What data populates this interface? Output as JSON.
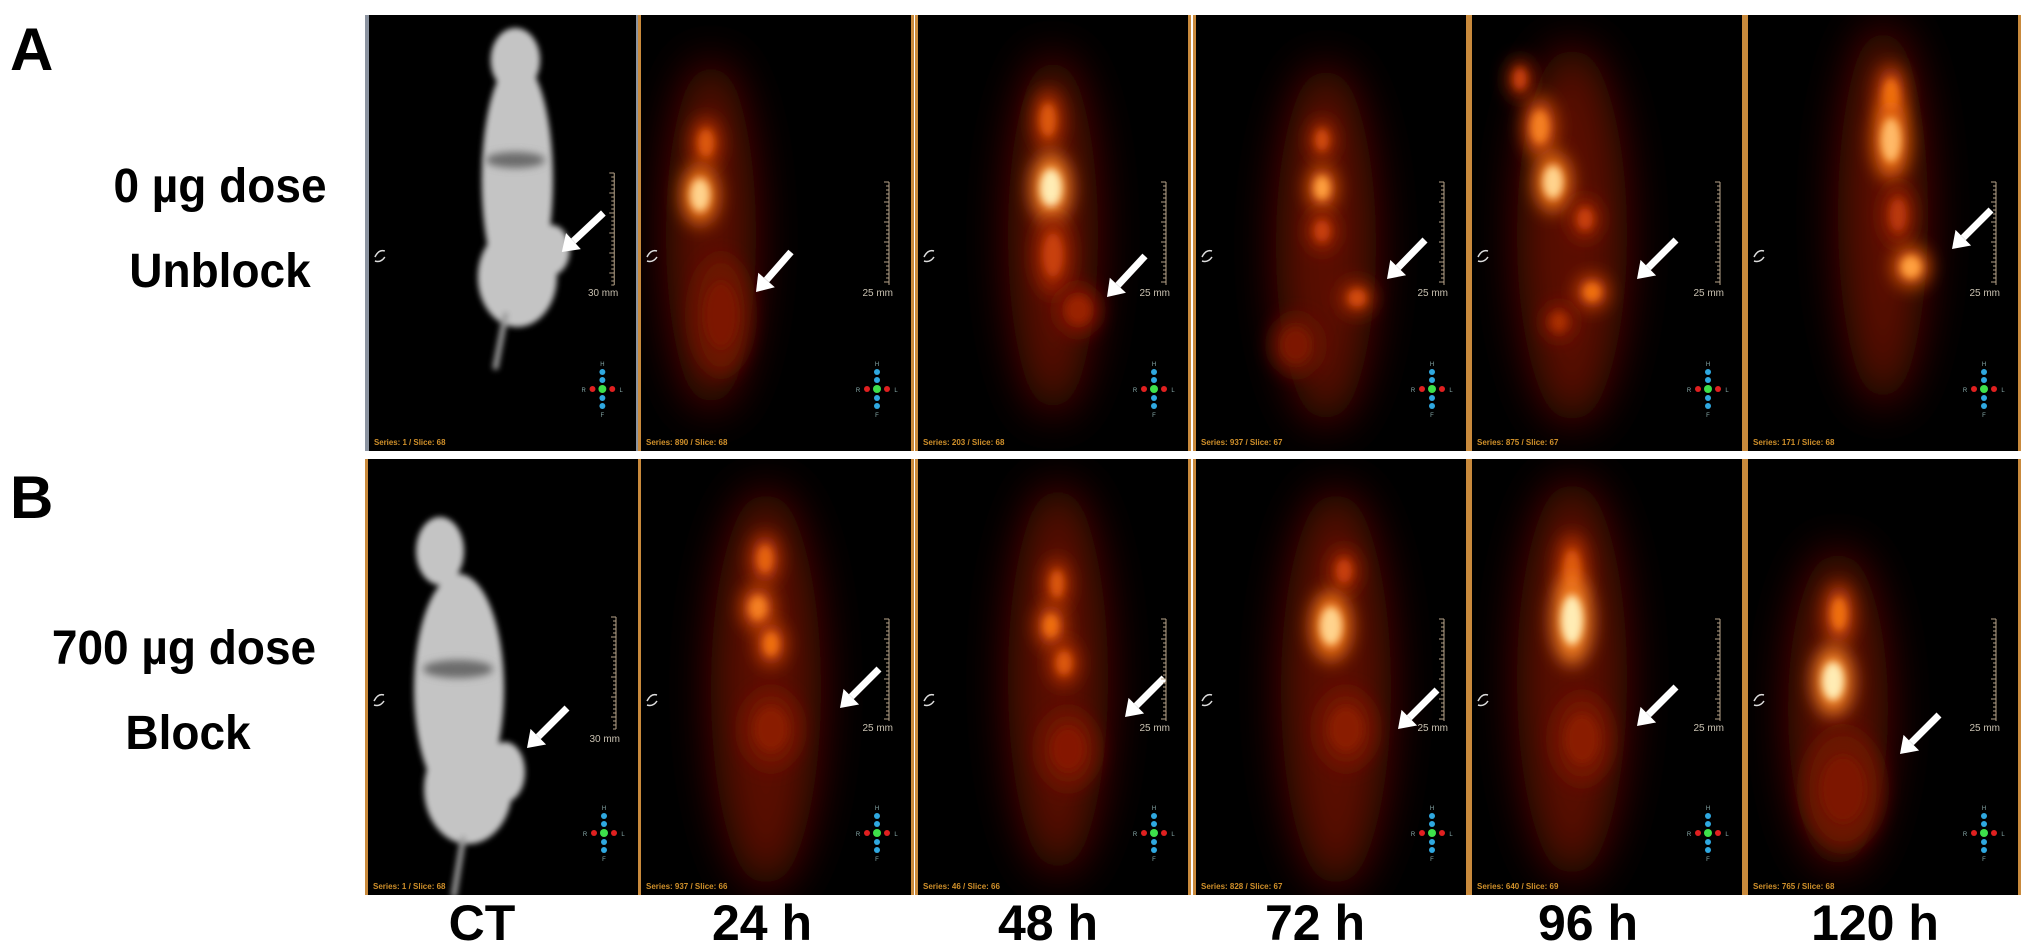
{
  "rows": [
    {
      "letter": "A",
      "label_line1": "0 µg dose",
      "label_line2": "Unblock",
      "images": [
        {
          "modality": "CT",
          "series": "Series: 1 / Slice: 68",
          "scale": "30 mm"
        },
        {
          "modality": "PET",
          "series": "Series: 890 / Slice: 68",
          "scale": "25 mm"
        },
        {
          "modality": "PET",
          "series": "Series: 203 / Slice: 68",
          "scale": "25 mm"
        },
        {
          "modality": "PET",
          "series": "Series: 937 / Slice: 67",
          "scale": "25 mm"
        },
        {
          "modality": "PET",
          "series": "Series: 875 / Slice: 67",
          "scale": "25 mm"
        },
        {
          "modality": "PET",
          "series": "Series: 171 / Slice: 68",
          "scale": "25 mm"
        }
      ]
    },
    {
      "letter": "B",
      "label_line1": "700 µg dose",
      "label_line2": "Block",
      "images": [
        {
          "modality": "CT",
          "series": "Series: 1 / Slice: 68",
          "scale": "30 mm"
        },
        {
          "modality": "PET",
          "series": "Series: 937 / Slice: 66",
          "scale": "25 mm"
        },
        {
          "modality": "PET",
          "series": "Series: 46 / Slice: 66",
          "scale": "25 mm"
        },
        {
          "modality": "PET",
          "series": "Series: 828 / Slice: 67",
          "scale": "25 mm"
        },
        {
          "modality": "PET",
          "series": "Series: 640 / Slice: 69",
          "scale": "25 mm"
        },
        {
          "modality": "PET",
          "series": "Series: 765 / Slice: 68",
          "scale": "25 mm"
        }
      ]
    }
  ],
  "columns": [
    "CT",
    "24 h",
    "48 h",
    "72 h",
    "96 h",
    "120 h"
  ],
  "compass": {
    "top": "H",
    "bottom": "F",
    "left": "R",
    "right": "L"
  },
  "colors": {
    "panel_border": "#c98a3c",
    "ct_border": "#8b93a0",
    "overlay_text": "#d0902a",
    "arrow": "#ffffff"
  },
  "icons": {
    "arrow": "tumor-arrow-icon",
    "orientation": "orientation-compass-icon",
    "marker": "slice-marker-icon"
  }
}
